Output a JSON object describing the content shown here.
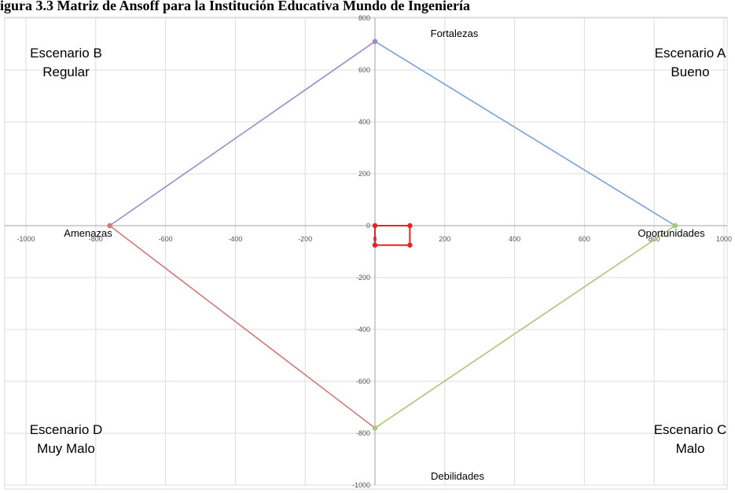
{
  "caption": "igura 3.3 Matriz de Ansoff para la Institución Educativa Mundo de Ingeniería",
  "chart_data": {
    "type": "scatter",
    "title": "",
    "xlabel": "",
    "ylabel": "",
    "xlim": [
      -1000,
      1000
    ],
    "ylim": [
      -1000,
      800
    ],
    "grid": true,
    "x_ticks": [
      -1000,
      -800,
      -600,
      -400,
      -200,
      0,
      200,
      400,
      600,
      800,
      1000
    ],
    "y_ticks": [
      -1000,
      -800,
      -600,
      -400,
      -200,
      0,
      200,
      400,
      600,
      800
    ],
    "axis_labels": {
      "top": "Fortalezas",
      "bottom": "Debilidades",
      "left": "Amenazas",
      "right": "Oportunidades"
    },
    "scenarios": [
      {
        "id": "A",
        "line1": "Escenario A",
        "line2": "Bueno",
        "pos": "top-right"
      },
      {
        "id": "B",
        "line1": "Escenario B",
        "line2": "Regular",
        "pos": "top-left"
      },
      {
        "id": "C",
        "line1": "Escenario C",
        "line2": "Malo",
        "pos": "bottom-right"
      },
      {
        "id": "D",
        "line1": "Escenario D",
        "line2": "Muy Malo",
        "pos": "bottom-left"
      }
    ],
    "series": [
      {
        "color": "#7aa0d8",
        "points": [
          [
            0,
            710
          ],
          [
            860,
            0
          ]
        ]
      },
      {
        "color": "#a488c4",
        "points": [
          [
            -760,
            0
          ],
          [
            0,
            710
          ]
        ]
      },
      {
        "color": "#d47a7a",
        "points": [
          [
            -760,
            0
          ],
          [
            0,
            -780
          ]
        ]
      },
      {
        "color": "#a9c774",
        "points": [
          [
            0,
            -780
          ],
          [
            860,
            0
          ]
        ]
      },
      {
        "color": "#e8221e",
        "closed": true,
        "points": [
          [
            0,
            0
          ],
          [
            100,
            0
          ],
          [
            100,
            -75
          ],
          [
            0,
            -75
          ]
        ]
      }
    ]
  }
}
